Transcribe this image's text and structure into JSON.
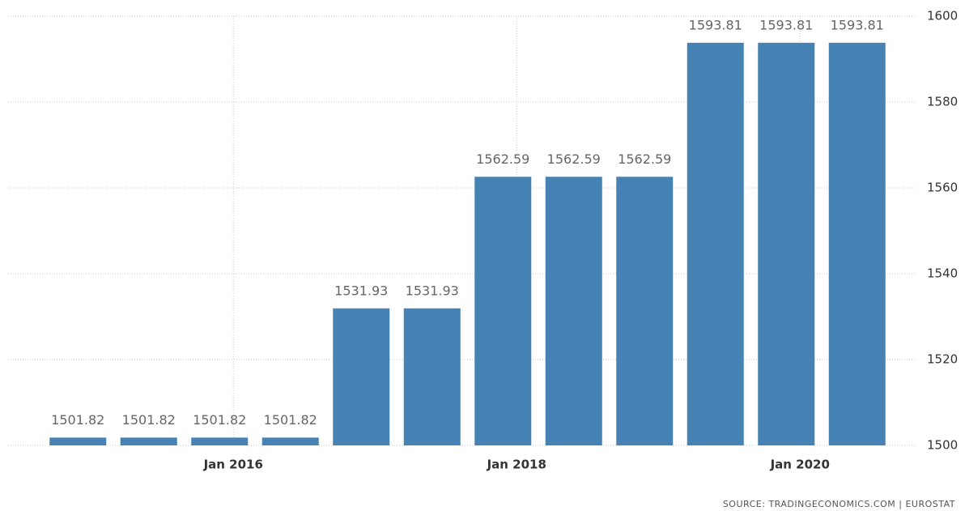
{
  "chart_data": {
    "type": "bar",
    "categories": [
      null,
      null,
      "Jan 2016",
      null,
      null,
      null,
      "Jan 2018",
      null,
      null,
      null,
      "Jan 2020",
      null
    ],
    "values": [
      1501.82,
      1501.82,
      1501.82,
      1501.82,
      1531.93,
      1531.93,
      1562.59,
      1562.59,
      1562.59,
      1593.81,
      1593.81,
      1593.81
    ],
    "color": "#4682b4",
    "ylim": [
      1500,
      1600
    ],
    "yticks": [
      1500,
      1520,
      1540,
      1560,
      1580,
      1600
    ],
    "grid": true,
    "source": "SOURCE: TRADINGECONOMICS.COM  |  EUROSTAT"
  }
}
